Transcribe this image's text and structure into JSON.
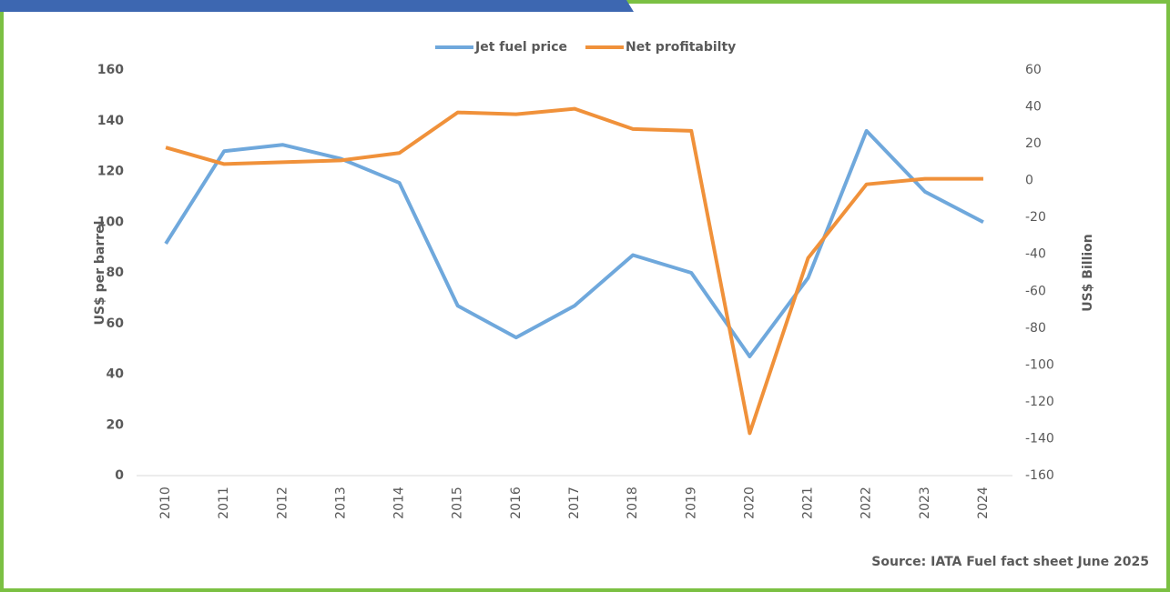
{
  "chart_data": {
    "type": "line",
    "categories": [
      "2010",
      "2011",
      "2012",
      "2013",
      "2014",
      "2015",
      "2016",
      "2017",
      "2018",
      "2019",
      "2020",
      "2021",
      "2022",
      "2023",
      "2024"
    ],
    "series": [
      {
        "name": "Jet fuel price",
        "color": "#6fa8dc",
        "values": [
          91.5,
          128,
          130.5,
          125,
          115.5,
          67,
          54.5,
          67,
          87,
          80,
          47,
          78,
          136,
          112,
          100
        ]
      },
      {
        "name": "Net profitabilty",
        "color": "#f0913a",
        "axis": "y2",
        "values": [
          18,
          9,
          10,
          11,
          15,
          37,
          36,
          39,
          28,
          27,
          -137,
          -42,
          -2,
          1,
          1
        ]
      }
    ],
    "ylabel": "US$ per barrel",
    "y2label": "US$ Billion",
    "ylim": [
      0,
      160
    ],
    "yticks": [
      0,
      20,
      40,
      60,
      80,
      100,
      120,
      140,
      160
    ],
    "y2lim": [
      -160,
      60
    ],
    "y2ticks": [
      -160,
      -140,
      -120,
      -100,
      -80,
      -60,
      -40,
      -20,
      0,
      20,
      40,
      60
    ],
    "legend": "top",
    "source": "Source: IATA Fuel fact sheet June 2025"
  }
}
